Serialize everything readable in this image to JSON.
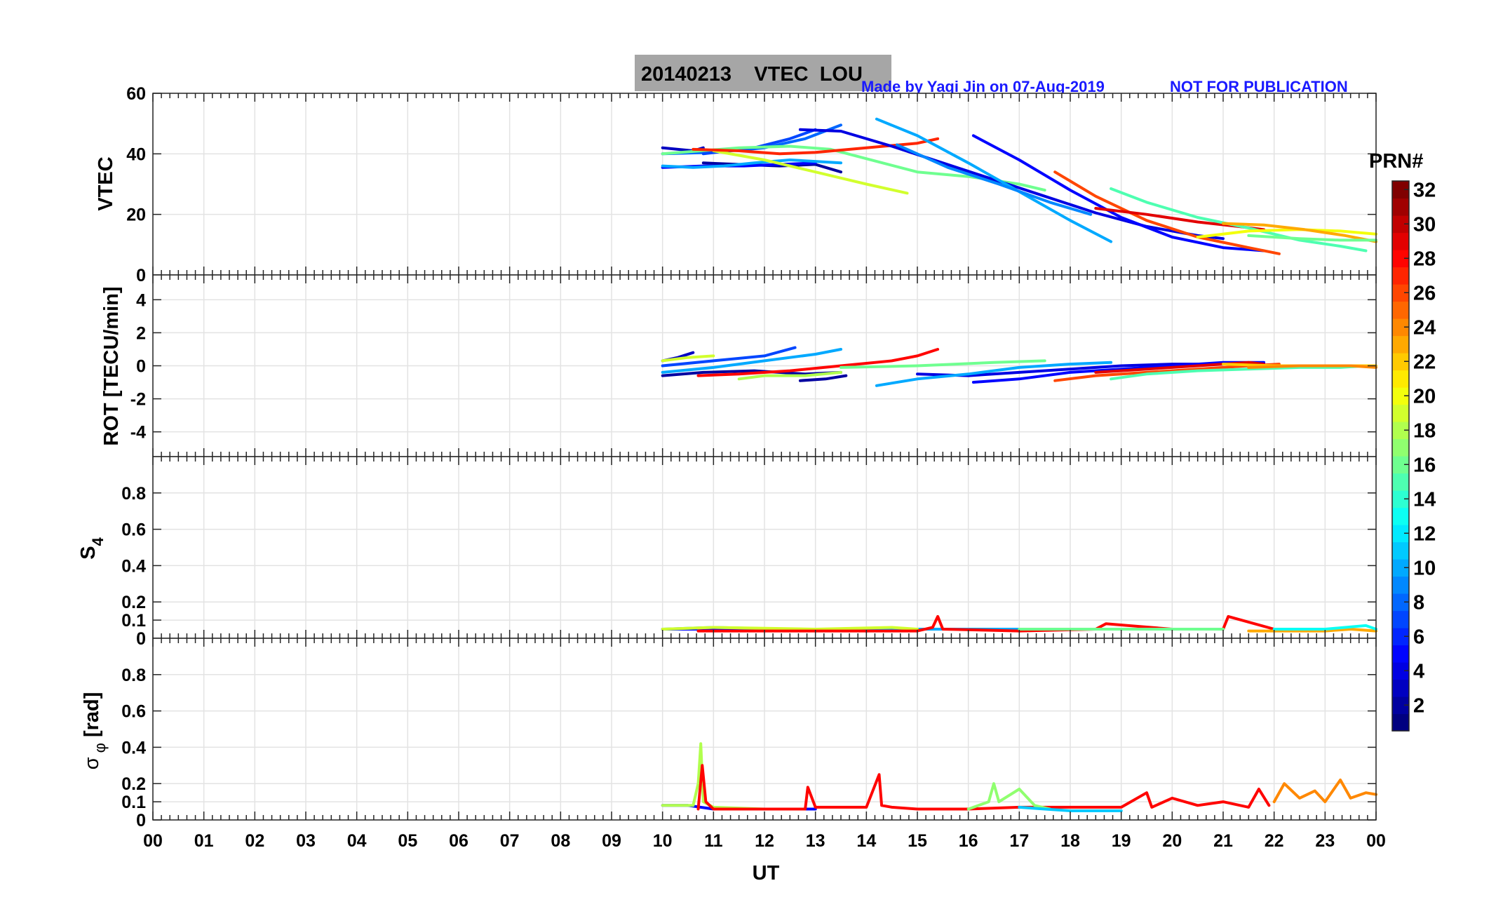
{
  "chart_data": {
    "type": "line",
    "title": "20140213    VTEC  LOU",
    "credit": "Made by Yaqi Jin on 07-Aug-2019",
    "notice": "NOT FOR PUBLICATION",
    "xlabel": "UT",
    "xlim": [
      0,
      24
    ],
    "x_tick_labels": [
      "00",
      "01",
      "02",
      "03",
      "04",
      "05",
      "06",
      "07",
      "08",
      "09",
      "10",
      "11",
      "12",
      "13",
      "14",
      "15",
      "16",
      "17",
      "18",
      "19",
      "20",
      "21",
      "22",
      "23",
      "00"
    ],
    "colorbar": {
      "label": "PRN#",
      "range": [
        1,
        32
      ],
      "tick_values": [
        2,
        4,
        6,
        8,
        10,
        12,
        14,
        16,
        18,
        20,
        22,
        24,
        26,
        28,
        30,
        32
      ],
      "tick_labels": [
        "2",
        "4",
        "6",
        "8",
        "10",
        "12",
        "14",
        "16",
        "18",
        "20",
        "22",
        "24",
        "26",
        "28",
        "30",
        "32"
      ]
    },
    "panels": [
      {
        "id": "vtec",
        "ylabel": "VTEC",
        "ylim": [
          0,
          60
        ],
        "y_ticks": [
          0,
          20,
          40,
          60
        ],
        "y_tick_labels": [
          "0",
          "20",
          "40",
          "60"
        ],
        "series": [
          {
            "prn": 3,
            "x": [
              10.0,
              10.3,
              10.6,
              10.8
            ],
            "y": [
              42,
              41.5,
              41,
              42
            ]
          },
          {
            "prn": 2,
            "x": [
              10.8,
              11.5,
              12.3,
              13.0,
              13.5
            ],
            "y": [
              37,
              36.5,
              36,
              36.5,
              34
            ]
          },
          {
            "prn": 5,
            "x": [
              10.0,
              10.8,
              11.6,
              12.3,
              13.0
            ],
            "y": [
              35.5,
              36,
              36,
              36.5,
              37
            ]
          },
          {
            "prn": 10,
            "x": [
              10.0,
              10.6,
              11.2,
              11.8,
              12.5,
              13.5
            ],
            "y": [
              36,
              35.5,
              36,
              37,
              38,
              37
            ]
          },
          {
            "prn": 8,
            "x": [
              10.0,
              11.0,
              12.0,
              12.8,
              13.5
            ],
            "y": [
              40,
              40.5,
              42,
              45,
              49.5
            ]
          },
          {
            "prn": 7,
            "x": [
              10.8,
              11.8,
              12.5,
              13.0
            ],
            "y": [
              40,
              42,
              45,
              48
            ]
          },
          {
            "prn": 16,
            "x": [
              10.0,
              10.6,
              11.5,
              12.5,
              13.3,
              14.2,
              15.0,
              16.0,
              17.0,
              17.5
            ],
            "y": [
              40,
              40.8,
              42,
              42.5,
              41.5,
              37.5,
              34,
              32.5,
              30,
              28
            ]
          },
          {
            "prn": 19,
            "x": [
              11.0,
              12.0,
              13.0,
              14.0,
              14.8
            ],
            "y": [
              41,
              38,
              34,
              30,
              27
            ]
          },
          {
            "prn": 27,
            "x": [
              10.6,
              11.5,
              12.3,
              13.0,
              14.0,
              15.0,
              15.4
            ],
            "y": [
              41.5,
              41,
              40,
              40.5,
              42,
              43.5,
              45
            ]
          },
          {
            "prn": 4,
            "x": [
              12.7,
              13.5,
              14.5,
              15.5,
              16.5,
              17.5,
              18.5,
              19.5,
              20.5,
              21.0
            ],
            "y": [
              48,
              47.5,
              42.5,
              37,
              31.5,
              26,
              20.5,
              16,
              13,
              12
            ]
          },
          {
            "prn": 10,
            "x": [
              14.2,
              15.0,
              16.0,
              17.0,
              18.0,
              18.8
            ],
            "y": [
              51.5,
              46,
              37,
              27.5,
              18,
              11
            ]
          },
          {
            "prn": 9,
            "x": [
              14.6,
              15.6,
              16.6,
              17.6,
              18.4
            ],
            "y": [
              43,
              35.5,
              30,
              24,
              20
            ]
          },
          {
            "prn": 5,
            "x": [
              16.1,
              17.0,
              18.0,
              19.0,
              20.0,
              21.0,
              21.8
            ],
            "y": [
              46,
              38,
              28,
              19,
              12.5,
              9,
              8
            ]
          },
          {
            "prn": 26,
            "x": [
              17.7,
              18.5,
              19.5,
              20.5,
              21.5,
              22.1
            ],
            "y": [
              34,
              26,
              18,
              12.5,
              9,
              7
            ]
          },
          {
            "prn": 29,
            "x": [
              18.5,
              19.5,
              20.5,
              21.3,
              21.8
            ],
            "y": [
              22,
              20,
              17.5,
              16,
              15
            ]
          },
          {
            "prn": 15,
            "x": [
              18.8,
              19.5,
              20.5,
              21.5,
              22.5,
              23.3,
              23.8
            ],
            "y": [
              28.5,
              24,
              19,
              15.5,
              11.5,
              9.5,
              8
            ]
          },
          {
            "prn": 20,
            "x": [
              20.5,
              21.5,
              22.5,
              23.3,
              24.0
            ],
            "y": [
              12.5,
              14.5,
              15,
              14.5,
              13.5
            ]
          },
          {
            "prn": 23,
            "x": [
              21.0,
              21.8,
              22.6,
              23.4,
              24.0
            ],
            "y": [
              17,
              16.5,
              15,
              13,
              11
            ]
          },
          {
            "prn": 16,
            "x": [
              21.5,
              22.5,
              23.3,
              24.0
            ],
            "y": [
              13,
              12,
              11.5,
              11.5
            ]
          }
        ]
      },
      {
        "id": "rot",
        "ylabel": "ROT [TECU/min]",
        "ylim": [
          -5.5,
          5.5
        ],
        "y_ticks": [
          -4,
          -2,
          0,
          2,
          4
        ],
        "y_tick_labels": [
          "-4",
          "-2",
          "0",
          "2",
          "4"
        ],
        "series": [
          {
            "prn": 3,
            "x": [
              10.0,
              10.3,
              10.6
            ],
            "y": [
              0.3,
              0.5,
              0.8
            ]
          },
          {
            "prn": 2,
            "x": [
              10.0,
              10.8,
              11.8,
              12.8,
              13.5
            ],
            "y": [
              -0.6,
              -0.4,
              -0.3,
              -0.5,
              -0.4
            ]
          },
          {
            "prn": 7,
            "x": [
              10.0,
              11.0,
              12.0,
              12.6
            ],
            "y": [
              0.0,
              0.3,
              0.6,
              1.1
            ]
          },
          {
            "prn": 10,
            "x": [
              10.0,
              11.0,
              12.0,
              13.0,
              13.5
            ],
            "y": [
              -0.4,
              -0.1,
              0.3,
              0.7,
              1.0
            ]
          },
          {
            "prn": 19,
            "x": [
              10.0,
              10.5,
              11.0
            ],
            "y": [
              0.3,
              0.5,
              0.6
            ]
          },
          {
            "prn": 18,
            "x": [
              11.5,
              12.0,
              12.8,
              13.5
            ],
            "y": [
              -0.8,
              -0.6,
              -0.6,
              -0.4
            ]
          },
          {
            "prn": 28,
            "x": [
              10.7,
              11.5,
              12.5,
              13.5,
              14.5,
              15.0,
              15.4
            ],
            "y": [
              -0.6,
              -0.5,
              -0.3,
              0.0,
              0.3,
              0.6,
              1.0
            ]
          },
          {
            "prn": 2,
            "x": [
              12.7,
              13.2,
              13.6
            ],
            "y": [
              -0.9,
              -0.8,
              -0.6
            ]
          },
          {
            "prn": 4,
            "x": [
              15.0,
              16.0,
              17.0,
              18.0,
              19.0,
              20.0,
              21.0
            ],
            "y": [
              -0.5,
              -0.6,
              -0.4,
              -0.2,
              0.0,
              0.1,
              0.1
            ]
          },
          {
            "prn": 10,
            "x": [
              14.2,
              15.0,
              16.0,
              17.0,
              18.0,
              18.8
            ],
            "y": [
              -1.2,
              -0.8,
              -0.5,
              -0.1,
              0.1,
              0.2
            ]
          },
          {
            "prn": 5,
            "x": [
              16.1,
              17.0,
              18.0,
              19.0,
              20.0,
              21.0,
              21.8
            ],
            "y": [
              -1.0,
              -0.8,
              -0.4,
              -0.2,
              0.0,
              0.2,
              0.2
            ]
          },
          {
            "prn": 16,
            "x": [
              13.5,
              15.0,
              16.5,
              17.5
            ],
            "y": [
              -0.1,
              0.0,
              0.2,
              0.3
            ]
          },
          {
            "prn": 26,
            "x": [
              17.7,
              18.5,
              19.5,
              20.5,
              21.5,
              22.1
            ],
            "y": [
              -0.9,
              -0.6,
              -0.4,
              -0.2,
              0.0,
              0.1
            ]
          },
          {
            "prn": 29,
            "x": [
              18.5,
              19.5,
              20.5,
              21.5,
              21.8
            ],
            "y": [
              -0.4,
              -0.2,
              0.0,
              0.2,
              0.1
            ]
          },
          {
            "prn": 15,
            "x": [
              18.8,
              19.5,
              20.5,
              21.5,
              22.5,
              23.3,
              23.8
            ],
            "y": [
              -0.8,
              -0.5,
              -0.3,
              -0.2,
              -0.1,
              -0.1,
              0.0
            ]
          },
          {
            "prn": 22,
            "x": [
              21.0,
              22.0,
              23.0,
              24.0
            ],
            "y": [
              0.1,
              0.0,
              0.0,
              0.0
            ]
          },
          {
            "prn": 24,
            "x": [
              21.5,
              22.5,
              23.5,
              24.0
            ],
            "y": [
              -0.1,
              0.0,
              0.0,
              -0.1
            ]
          }
        ]
      },
      {
        "id": "s4",
        "ylabel": "S4",
        "ylim": [
          0,
          1
        ],
        "y_ticks": [
          0,
          0.1,
          0.2,
          0.4,
          0.6,
          0.8
        ],
        "y_tick_labels": [
          "0",
          "0.1",
          "0.2",
          "0.4",
          "0.6",
          "0.8"
        ],
        "series": [
          {
            "prn": 5,
            "x": [
              10.0,
              11.0,
              12.0,
              13.0,
              14.0,
              15.0,
              16.0
            ],
            "y": [
              0.05,
              0.05,
              0.05,
              0.05,
              0.04,
              0.05,
              0.05
            ]
          },
          {
            "prn": 10,
            "x": [
              10.0,
              11.0,
              12.5,
              14.0,
              16.0,
              18.0,
              19.0
            ],
            "y": [
              0.05,
              0.06,
              0.05,
              0.05,
              0.05,
              0.05,
              0.05
            ]
          },
          {
            "prn": 19,
            "x": [
              10.0,
              11.0,
              13.0,
              14.5,
              15.0
            ],
            "y": [
              0.05,
              0.06,
              0.05,
              0.06,
              0.05
            ]
          },
          {
            "prn": 28,
            "x": [
              10.7,
              12.0,
              13.5,
              15.0,
              15.3,
              15.4,
              15.5,
              17.0,
              18.5,
              18.7,
              20.0,
              21.0,
              21.1,
              22.0
            ],
            "y": [
              0.04,
              0.04,
              0.04,
              0.04,
              0.06,
              0.12,
              0.05,
              0.04,
              0.05,
              0.08,
              0.05,
              0.05,
              0.12,
              0.05
            ]
          },
          {
            "prn": 16,
            "x": [
              17.0,
              18.0,
              19.0,
              20.0,
              21.0
            ],
            "y": [
              0.05,
              0.05,
              0.05,
              0.05,
              0.05
            ]
          },
          {
            "prn": 23,
            "x": [
              21.5,
              22.5,
              23.0,
              23.5,
              24.0
            ],
            "y": [
              0.04,
              0.04,
              0.04,
              0.05,
              0.04
            ]
          },
          {
            "prn": 13,
            "x": [
              22.0,
              23.0,
              23.8,
              24.0
            ],
            "y": [
              0.05,
              0.05,
              0.07,
              0.05
            ]
          }
        ]
      },
      {
        "id": "sigma_phi",
        "ylabel": "σ φ [rad]",
        "ylim": [
          0,
          1
        ],
        "y_ticks": [
          0,
          0.1,
          0.2,
          0.4,
          0.6,
          0.8
        ],
        "y_tick_labels": [
          "0",
          "0.1",
          "0.2",
          "0.4",
          "0.6",
          "0.8"
        ],
        "series": [
          {
            "prn": 5,
            "x": [
              10.0,
              10.5,
              11.0,
              12.0,
              13.0
            ],
            "y": [
              0.08,
              0.08,
              0.06,
              0.06,
              0.06
            ]
          },
          {
            "prn": 18,
            "x": [
              10.0,
              10.6,
              10.7,
              10.75,
              10.8,
              11.0,
              12.0
            ],
            "y": [
              0.08,
              0.08,
              0.2,
              0.42,
              0.1,
              0.07,
              0.06
            ]
          },
          {
            "prn": 28,
            "x": [
              10.7,
              10.78,
              10.85,
              11.0,
              12.0,
              12.8,
              12.85,
              13.0,
              14.0,
              14.25,
              14.3,
              14.5,
              15.0,
              16.0,
              17.0,
              18.0,
              19.0,
              19.5,
              19.6,
              20.0,
              20.5,
              21.0,
              21.5,
              21.7,
              21.9
            ],
            "y": [
              0.06,
              0.3,
              0.1,
              0.06,
              0.06,
              0.06,
              0.18,
              0.07,
              0.07,
              0.25,
              0.08,
              0.07,
              0.06,
              0.06,
              0.07,
              0.07,
              0.07,
              0.15,
              0.07,
              0.12,
              0.08,
              0.1,
              0.07,
              0.17,
              0.08
            ]
          },
          {
            "prn": 17,
            "x": [
              16.0,
              16.4,
              16.5,
              16.6,
              17.0,
              17.3,
              17.6
            ],
            "y": [
              0.06,
              0.1,
              0.2,
              0.1,
              0.17,
              0.08,
              0.06
            ]
          },
          {
            "prn": 11,
            "x": [
              17.0,
              17.5,
              18.0,
              19.0
            ],
            "y": [
              0.07,
              0.06,
              0.05,
              0.05
            ]
          },
          {
            "prn": 24,
            "x": [
              22.0,
              22.2,
              22.5,
              22.8,
              23.0,
              23.3,
              23.5,
              23.8,
              24.0
            ],
            "y": [
              0.1,
              0.2,
              0.12,
              0.16,
              0.1,
              0.22,
              0.12,
              0.15,
              0.14
            ]
          }
        ]
      }
    ]
  }
}
